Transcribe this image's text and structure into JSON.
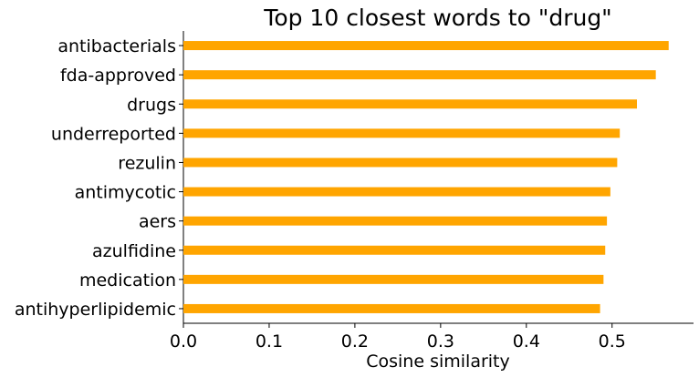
{
  "chart_data": {
    "type": "bar",
    "orientation": "horizontal",
    "title": "Top 10 closest words to \"drug\"",
    "xlabel": "Cosine similarity",
    "ylabel": "",
    "categories": [
      "antibacterials",
      "fda-approved",
      "drugs",
      "underreported",
      "rezulin",
      "antimycotic",
      "aers",
      "azulfidine",
      "medication",
      "antihyperlipidemic"
    ],
    "values": [
      0.566,
      0.551,
      0.529,
      0.509,
      0.506,
      0.498,
      0.494,
      0.492,
      0.49,
      0.486
    ],
    "xlim": [
      0.0,
      0.595
    ],
    "xticks": [
      0.0,
      0.1,
      0.2,
      0.3,
      0.4,
      0.5
    ],
    "xtick_labels": [
      "0.0",
      "0.1",
      "0.2",
      "0.3",
      "0.4",
      "0.5"
    ],
    "grid": false,
    "legend": "none",
    "bar_color": "#ffa500"
  }
}
